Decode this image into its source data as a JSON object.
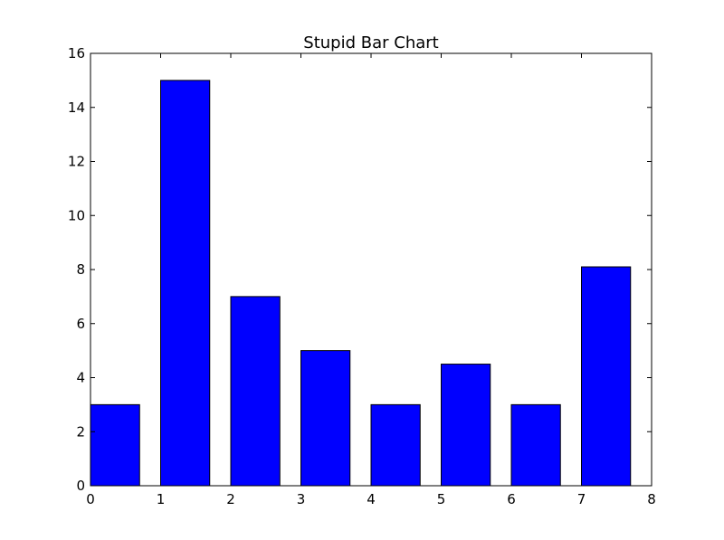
{
  "chart_data": {
    "type": "bar",
    "title": "Stupid Bar Chart",
    "xlabel": "",
    "ylabel": "",
    "x": [
      0,
      1,
      2,
      3,
      4,
      5,
      6,
      7
    ],
    "values": [
      3,
      15,
      7,
      5,
      3,
      4.5,
      3,
      8.1
    ],
    "bar_width": 0.7,
    "xlim": [
      0,
      8
    ],
    "ylim": [
      0,
      16
    ],
    "xticks": [
      0,
      1,
      2,
      3,
      4,
      5,
      6,
      7,
      8
    ],
    "yticks": [
      0,
      2,
      4,
      6,
      8,
      10,
      12,
      14,
      16
    ],
    "grid": false,
    "bar_color": "#0000ff",
    "edge_color": "#000000"
  }
}
